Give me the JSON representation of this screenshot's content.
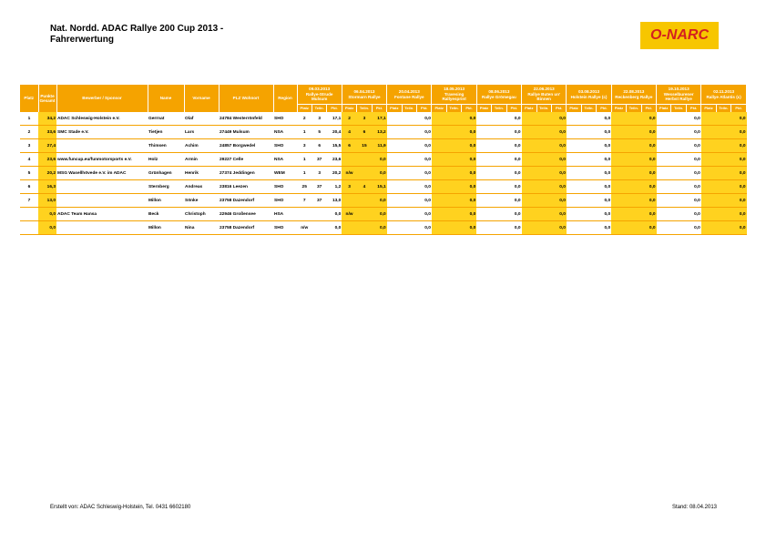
{
  "header": {
    "title": [
      "Nat. Nordd. ADAC Rallye 200 Cup 2013 -",
      "Fahrerwertung"
    ],
    "logo": "O-NARC"
  },
  "table": {
    "columns": [
      "Platz",
      "Punkte Gesamt",
      "Bewerber / Sponsor",
      "Name",
      "Vorname",
      "PLZ Wohnort",
      "Region"
    ],
    "events": [
      {
        "date": "09.03.2013",
        "name": "Rallye-Strude Mulsum"
      },
      {
        "date": "06.04.2013",
        "name": "Stormarn Rallye"
      },
      {
        "date": "20.04.2013",
        "name": "Fontane Rallye"
      },
      {
        "date": "18.05.2013",
        "name": "Travesing Rallyesprint"
      },
      {
        "date": "08.06.2013",
        "name": "Rallye Grömegau"
      },
      {
        "date": "22.06.2013",
        "name": "Rallye Buten un' Binnen"
      },
      {
        "date": "03.08.2013",
        "name": "Holstein Rallye (c)"
      },
      {
        "date": "22.08.2013",
        "name": "Reckenberg Rallye"
      },
      {
        "date": "19.10.2013",
        "name": "Wesselburener Herbst Rallye"
      },
      {
        "date": "02.11.2013",
        "name": "Rallye Atlantis (c)"
      }
    ],
    "subcolumns": [
      "Platz",
      "Teiln.",
      "Pkt."
    ],
    "rows": [
      {
        "platz": "1",
        "punkte": "34,2",
        "sponsor": "ADAC Schleswig-Holstein e.V.",
        "name": "Gerrnat",
        "vorname": "Olaf",
        "wohnort": "24784 Westerrönfeld",
        "region": "SHO",
        "events": [
          [
            "2",
            "3",
            "17,1"
          ],
          [
            "2",
            "3",
            "17,1"
          ],
          [
            null,
            null,
            "0,0"
          ],
          [
            null,
            null,
            "0,0"
          ],
          [
            null,
            null,
            "0,0"
          ],
          [
            null,
            null,
            "0,0"
          ],
          [
            null,
            null,
            "0,0"
          ],
          [
            null,
            null,
            "0,0"
          ],
          [
            null,
            null,
            "0,0"
          ],
          [
            null,
            null,
            "0,0"
          ]
        ]
      },
      {
        "platz": "2",
        "punkte": "33,6",
        "sponsor": "SMC Stade e.V.",
        "name": "Tietjen",
        "vorname": "Lars",
        "wohnort": "27449 Mulsum",
        "region": "NSA",
        "events": [
          [
            "1",
            "5",
            "20,4"
          ],
          [
            "4",
            "6",
            "13,2"
          ],
          [
            null,
            null,
            "0,0"
          ],
          [
            null,
            null,
            "0,0"
          ],
          [
            null,
            null,
            "0,0"
          ],
          [
            null,
            null,
            "0,0"
          ],
          [
            null,
            null,
            "0,0"
          ],
          [
            null,
            null,
            "0,0"
          ],
          [
            null,
            null,
            "0,0"
          ],
          [
            null,
            null,
            "0,0"
          ]
        ]
      },
      {
        "platz": "3",
        "punkte": "27,4",
        "sponsor": null,
        "name": "Thimsen",
        "vorname": "Achim",
        "wohnort": "24857 Borgwedel",
        "region": "SHO",
        "events": [
          [
            "3",
            "6",
            "15,5"
          ],
          [
            "6",
            "15",
            "11,9"
          ],
          [
            null,
            null,
            "0,0"
          ],
          [
            null,
            null,
            "0,0"
          ],
          [
            null,
            null,
            "0,0"
          ],
          [
            null,
            null,
            "0,0"
          ],
          [
            null,
            null,
            "0,0"
          ],
          [
            null,
            null,
            "0,0"
          ],
          [
            null,
            null,
            "0,0"
          ],
          [
            null,
            null,
            "0,0"
          ]
        ]
      },
      {
        "platz": "4",
        "punkte": "23,6",
        "sponsor": "www.funcup.eu/funmotorsports e.V.",
        "name": "Holz",
        "vorname": "Armin",
        "wohnort": "29227 Celle",
        "region": "NSA",
        "events": [
          [
            "1",
            "37",
            "23,6"
          ],
          [
            null,
            null,
            "0,0"
          ],
          [
            null,
            null,
            "0,0"
          ],
          [
            null,
            null,
            "0,0"
          ],
          [
            null,
            null,
            "0,0"
          ],
          [
            null,
            null,
            "0,0"
          ],
          [
            null,
            null,
            "0,0"
          ],
          [
            null,
            null,
            "0,0"
          ],
          [
            null,
            null,
            "0,0"
          ],
          [
            null,
            null,
            "0,0"
          ]
        ]
      },
      {
        "platz": "5",
        "punkte": "20,2",
        "sponsor": "MSG Wasellhövede e.V. im ADAC",
        "name": "Grünhagen",
        "vorname": "Henrik",
        "wohnort": "27374 Jeddingen",
        "region": "WEM",
        "events": [
          [
            "1",
            "3",
            "20,2"
          ],
          [
            "n/w",
            null,
            "0,0"
          ],
          [
            null,
            null,
            "0,0"
          ],
          [
            null,
            null,
            "0,0"
          ],
          [
            null,
            null,
            "0,0"
          ],
          [
            null,
            null,
            "0,0"
          ],
          [
            null,
            null,
            "0,0"
          ],
          [
            null,
            null,
            "0,0"
          ],
          [
            null,
            null,
            "0,0"
          ],
          [
            null,
            null,
            "0,0"
          ]
        ]
      },
      {
        "platz": "6",
        "punkte": "16,3",
        "sponsor": null,
        "name": "Sternberg",
        "vorname": "Andreas",
        "wohnort": "23816 Leezen",
        "region": "SHO",
        "events": [
          [
            "25",
            "37",
            "1,2"
          ],
          [
            "3",
            "4",
            "15,1"
          ],
          [
            null,
            null,
            "0,0"
          ],
          [
            null,
            null,
            "0,0"
          ],
          [
            null,
            null,
            "0,0"
          ],
          [
            null,
            null,
            "0,0"
          ],
          [
            null,
            null,
            "0,0"
          ],
          [
            null,
            null,
            "0,0"
          ],
          [
            null,
            null,
            "0,0"
          ],
          [
            null,
            null,
            "0,0"
          ]
        ]
      },
      {
        "platz": "7",
        "punkte": "13,0",
        "sponsor": null,
        "name": "Millon",
        "vorname": "Sönke",
        "wohnort": "23758 Dazendorf",
        "region": "SHO",
        "events": [
          [
            "7",
            "37",
            "13,0"
          ],
          [
            null,
            null,
            "0,0"
          ],
          [
            null,
            null,
            "0,0"
          ],
          [
            null,
            null,
            "0,0"
          ],
          [
            null,
            null,
            "0,0"
          ],
          [
            null,
            null,
            "0,0"
          ],
          [
            null,
            null,
            "0,0"
          ],
          [
            null,
            null,
            "0,0"
          ],
          [
            null,
            null,
            "0,0"
          ],
          [
            null,
            null,
            "0,0"
          ]
        ]
      },
      {
        "platz": null,
        "punkte": "0,0",
        "sponsor": "ADAC Team Hansa",
        "name": "Beck",
        "vorname": "Christoph",
        "wohnort": "22946 Großensee",
        "region": "HSA",
        "events": [
          [
            null,
            null,
            "0,0"
          ],
          [
            "n/w",
            null,
            "0,0"
          ],
          [
            null,
            null,
            "0,0"
          ],
          [
            null,
            null,
            "0,0"
          ],
          [
            null,
            null,
            "0,0"
          ],
          [
            null,
            null,
            "0,0"
          ],
          [
            null,
            null,
            "0,0"
          ],
          [
            null,
            null,
            "0,0"
          ],
          [
            null,
            null,
            "0,0"
          ],
          [
            null,
            null,
            "0,0"
          ]
        ]
      },
      {
        "platz": null,
        "punkte": "0,0",
        "sponsor": null,
        "name": "Millon",
        "vorname": "Nina",
        "wohnort": "23758 Dazendorf",
        "region": "SHO",
        "events": [
          [
            "n/w",
            null,
            "0,0"
          ],
          [
            null,
            null,
            "0,0"
          ],
          [
            null,
            null,
            "0,0"
          ],
          [
            null,
            null,
            "0,0"
          ],
          [
            null,
            null,
            "0,0"
          ],
          [
            null,
            null,
            "0,0"
          ],
          [
            null,
            null,
            "0,0"
          ],
          [
            null,
            null,
            "0,0"
          ],
          [
            null,
            null,
            "0,0"
          ],
          [
            null,
            null,
            "0,0"
          ]
        ]
      }
    ]
  },
  "footer": {
    "created": "Erstellt von: ADAC Schleswig-Holstein, Tel. 0431 6602180",
    "stand": "Stand: 08.04.2013"
  }
}
